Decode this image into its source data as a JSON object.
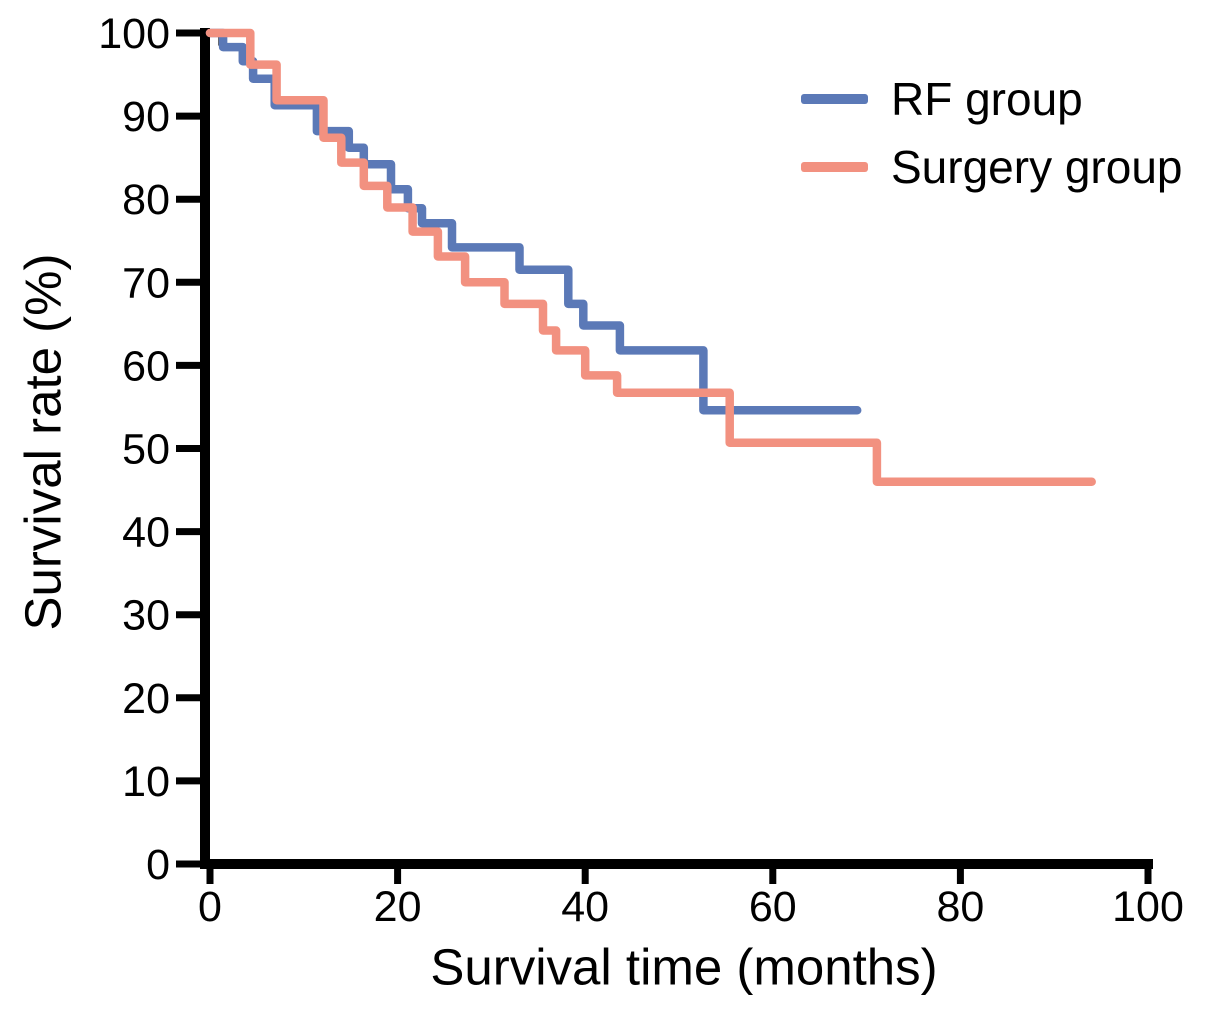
{
  "chart_data": {
    "type": "line",
    "subtype": "kaplan-meier-step-curve",
    "title": "",
    "xlabel": "Survival time (months)",
    "ylabel": "Survival rate (%)",
    "xlim": [
      0,
      100
    ],
    "ylim": [
      0,
      100
    ],
    "xticks": [
      0,
      20,
      40,
      60,
      80,
      100
    ],
    "yticks": [
      0,
      10,
      20,
      30,
      40,
      50,
      60,
      70,
      80,
      90,
      100
    ],
    "grid": false,
    "legend_position": "top-right",
    "axis_color": "#000000",
    "series": [
      {
        "name": "RF group",
        "color": "#5b79b7",
        "end_x": 69,
        "steps": [
          [
            0,
            100
          ],
          [
            1.4,
            98.3
          ],
          [
            3.5,
            96.6
          ],
          [
            4.6,
            94.5
          ],
          [
            6.9,
            91.3
          ],
          [
            11.4,
            88.2
          ],
          [
            14.8,
            86.2
          ],
          [
            16.4,
            84.2
          ],
          [
            19.3,
            81.2
          ],
          [
            21.1,
            78.9
          ],
          [
            22.6,
            77.1
          ],
          [
            25.8,
            74.2
          ],
          [
            33.0,
            71.5
          ],
          [
            38.2,
            67.4
          ],
          [
            39.8,
            64.8
          ],
          [
            43.7,
            61.8
          ],
          [
            52.6,
            54.6
          ]
        ]
      },
      {
        "name": "Surgery group",
        "color": "#f29180",
        "end_x": 94,
        "steps": [
          [
            0,
            100
          ],
          [
            4.3,
            96.2
          ],
          [
            7.1,
            91.9
          ],
          [
            12.1,
            87.4
          ],
          [
            14.0,
            84.4
          ],
          [
            16.4,
            81.6
          ],
          [
            18.9,
            79.0
          ],
          [
            21.6,
            76.1
          ],
          [
            24.3,
            73.1
          ],
          [
            27.2,
            70.0
          ],
          [
            31.4,
            67.4
          ],
          [
            35.5,
            64.2
          ],
          [
            36.9,
            61.8
          ],
          [
            40.0,
            58.8
          ],
          [
            43.4,
            56.7
          ],
          [
            55.4,
            50.7
          ],
          [
            71.1,
            46.0
          ]
        ]
      }
    ],
    "censor_marks": [
      {
        "series": "RF group",
        "x": 1.2,
        "y": 99.2
      }
    ]
  }
}
